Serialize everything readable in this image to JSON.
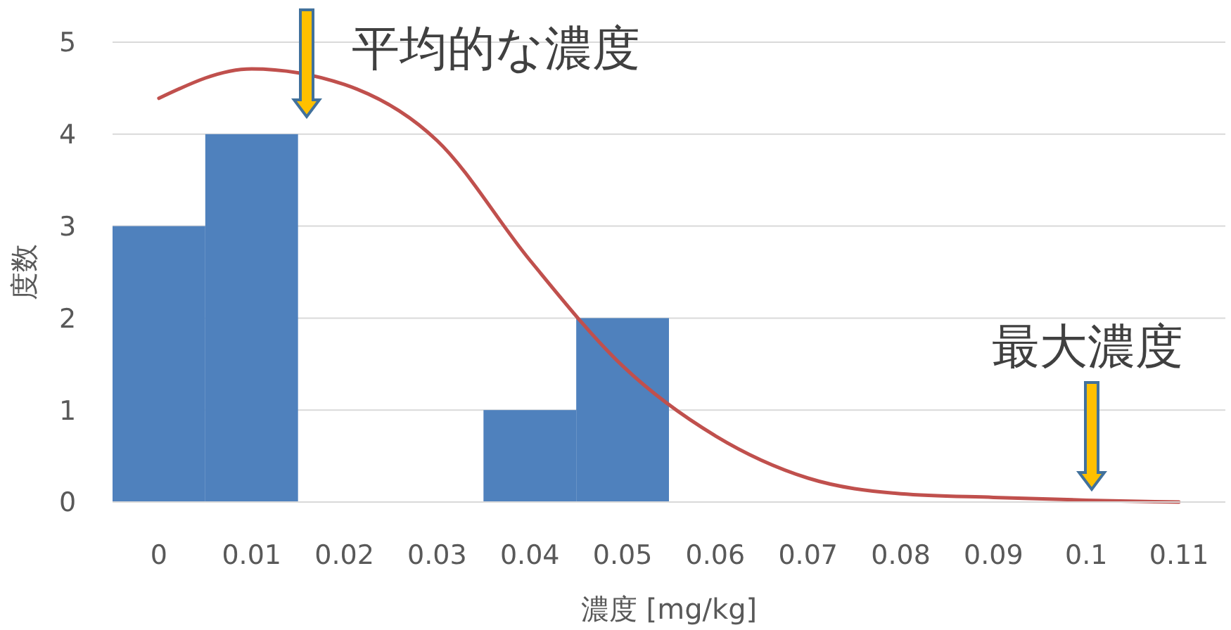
{
  "chart_data": {
    "type": "bar",
    "xlabel": "濃度 [mg/kg]",
    "ylabel": "度数",
    "categories": [
      "0",
      "0.01",
      "0.02",
      "0.03",
      "0.04",
      "0.05",
      "0.06",
      "0.07",
      "0.08",
      "0.09",
      "0.1",
      "0.11"
    ],
    "series": [
      {
        "color": "#4f81bd",
        "values": [
          3,
          4,
          0,
          0,
          1,
          2,
          0,
          0,
          0,
          0,
          0,
          0
        ]
      },
      {
        "type": "line",
        "color": "#c0504d",
        "values": [
          4.39,
          4.71,
          4.54,
          3.93,
          2.63,
          1.48,
          0.72,
          0.26,
          0.09,
          0.05,
          0.02,
          0
        ]
      }
    ],
    "ylim": [
      0,
      5
    ],
    "yticks": [
      0,
      1,
      2,
      3,
      4,
      5
    ],
    "grid": "y",
    "annotations": [
      "平均的な濃度",
      "最大濃度"
    ]
  }
}
